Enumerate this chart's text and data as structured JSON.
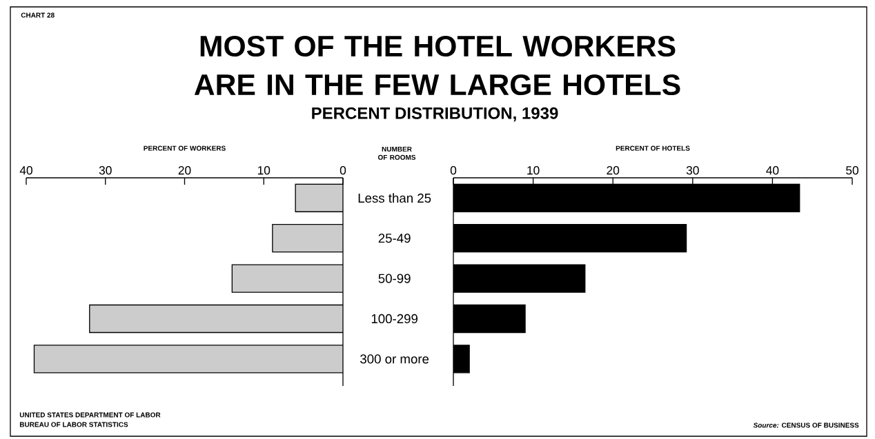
{
  "chart_data": [
    {
      "type": "bar",
      "orientation": "horizontal",
      "title": "MOST OF THE HOTEL WORKERS ARE IN THE FEW LARGE HOTELS",
      "subtitle": "PERCENT DISTRIBUTION, 1939",
      "xlabel": "PERCENT OF WORKERS",
      "ylabel": "NUMBER OF ROOMS",
      "categories": [
        "Less than 25",
        "25-49",
        "50-99",
        "100-299",
        "300 or more"
      ],
      "values": [
        6.0,
        8.9,
        14.0,
        32.0,
        39.0
      ],
      "color": "#cccccc",
      "xlim": [
        40,
        0
      ],
      "xticks": [
        40,
        30,
        20,
        10,
        0
      ],
      "annotations": [
        "CHART 28",
        "UNITED STATES DEPARTMENT OF LABOR",
        "BUREAU OF LABOR STATISTICS",
        "*Source:* CENSUS OF BUSINESS"
      ]
    },
    {
      "type": "bar",
      "orientation": "horizontal",
      "xlabel": "PERCENT OF HOTELS",
      "categories": [
        null,
        null,
        null,
        null,
        null
      ],
      "values": [
        43.4,
        29.2,
        16.5,
        9.0,
        2.0
      ],
      "color": "#000000",
      "xlim": [
        0,
        50
      ],
      "xticks": [
        0,
        10,
        20,
        30,
        40,
        50
      ]
    }
  ]
}
